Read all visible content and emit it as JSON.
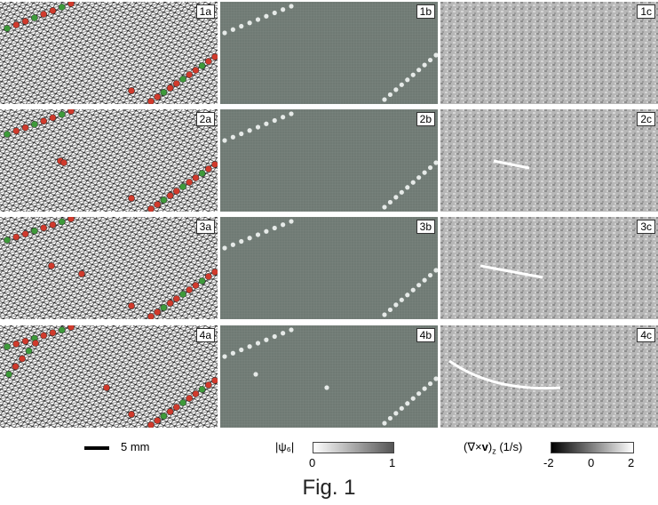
{
  "figure": {
    "caption": "Fig. 1",
    "rows": [
      {
        "labels": [
          "1a",
          "1b",
          "1c"
        ]
      },
      {
        "labels": [
          "2a",
          "2b",
          "2c"
        ]
      },
      {
        "labels": [
          "3a",
          "3b",
          "3c"
        ]
      },
      {
        "labels": [
          "4a",
          "4b",
          "4c"
        ]
      }
    ],
    "scale_bar": {
      "label": "5 mm"
    },
    "psi_colorbar": {
      "label": "|ψ₆|",
      "min": "0",
      "max": "1"
    },
    "vorticity_colorbar": {
      "label": "(∇×v)z (1/s)",
      "label_main": "(∇×",
      "label_v": "v",
      "label_close": ")",
      "label_sub": "z",
      "label_units": " (1/s)",
      "min": "-2",
      "mid": "0",
      "max": "2"
    }
  },
  "colors": {
    "defect_red": "#d03a2c",
    "defect_green": "#3e9a3a",
    "lattice_line": "#111111",
    "psi_background": "#6f7a74",
    "vorticity_background": "#b7b7b7"
  }
}
